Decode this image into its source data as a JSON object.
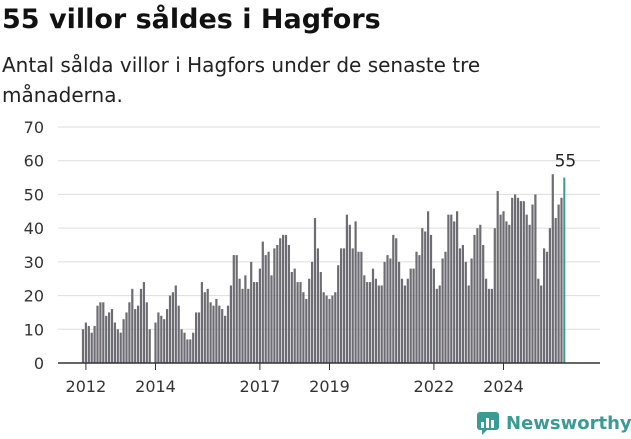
{
  "header": {
    "title": "55 villor såldes i Hagfors",
    "subtitle": "Antal sålda villor i Hagfors under de senaste tre månaderna."
  },
  "brand": {
    "name": "Newsworthy",
    "icon": "newsworthy-logo-icon"
  },
  "colors": {
    "bar": "#6d6c72",
    "highlight": "#3a9b94",
    "grid": "#dddddd",
    "axis": "#333333"
  },
  "chart_data": {
    "type": "bar",
    "x_start": "2012-01",
    "frequency": "monthly",
    "ylim": [
      0,
      70
    ],
    "yticks": [
      0,
      10,
      20,
      30,
      40,
      50,
      60,
      70
    ],
    "xticks": [
      "2012",
      "2014",
      "2017",
      "2019",
      "2022",
      "2024"
    ],
    "grid": true,
    "highlight_label": "55",
    "values": [
      10,
      12,
      11,
      9,
      11,
      17,
      18,
      18,
      14,
      15,
      16,
      12,
      10,
      9,
      13,
      15,
      18,
      22,
      16,
      17,
      22,
      24,
      18,
      10,
      0,
      12,
      15,
      14,
      13,
      16,
      20,
      21,
      23,
      17,
      10,
      9,
      7,
      7,
      9,
      15,
      15,
      24,
      21,
      22,
      18,
      17,
      19,
      17,
      16,
      14,
      17,
      23,
      32,
      32,
      25,
      22,
      26,
      22,
      30,
      24,
      24,
      28,
      36,
      32,
      33,
      26,
      34,
      35,
      37,
      38,
      38,
      35,
      27,
      28,
      24,
      24,
      21,
      19,
      25,
      30,
      43,
      34,
      27,
      21,
      20,
      19,
      20,
      21,
      29,
      34,
      34,
      44,
      41,
      34,
      42,
      33,
      33,
      26,
      24,
      24,
      28,
      25,
      23,
      23,
      30,
      32,
      31,
      38,
      37,
      30,
      25,
      23,
      25,
      28,
      28,
      33,
      32,
      40,
      39,
      45,
      38,
      28,
      22,
      23,
      31,
      33,
      44,
      44,
      42,
      45,
      34,
      35,
      30,
      23,
      31,
      38,
      40,
      41,
      35,
      25,
      22,
      22,
      40,
      51,
      44,
      45,
      42,
      41,
      49,
      50,
      49,
      48,
      48,
      44,
      41,
      47,
      50,
      25,
      23,
      34,
      33,
      40,
      56,
      43,
      47,
      49,
      55
    ]
  }
}
